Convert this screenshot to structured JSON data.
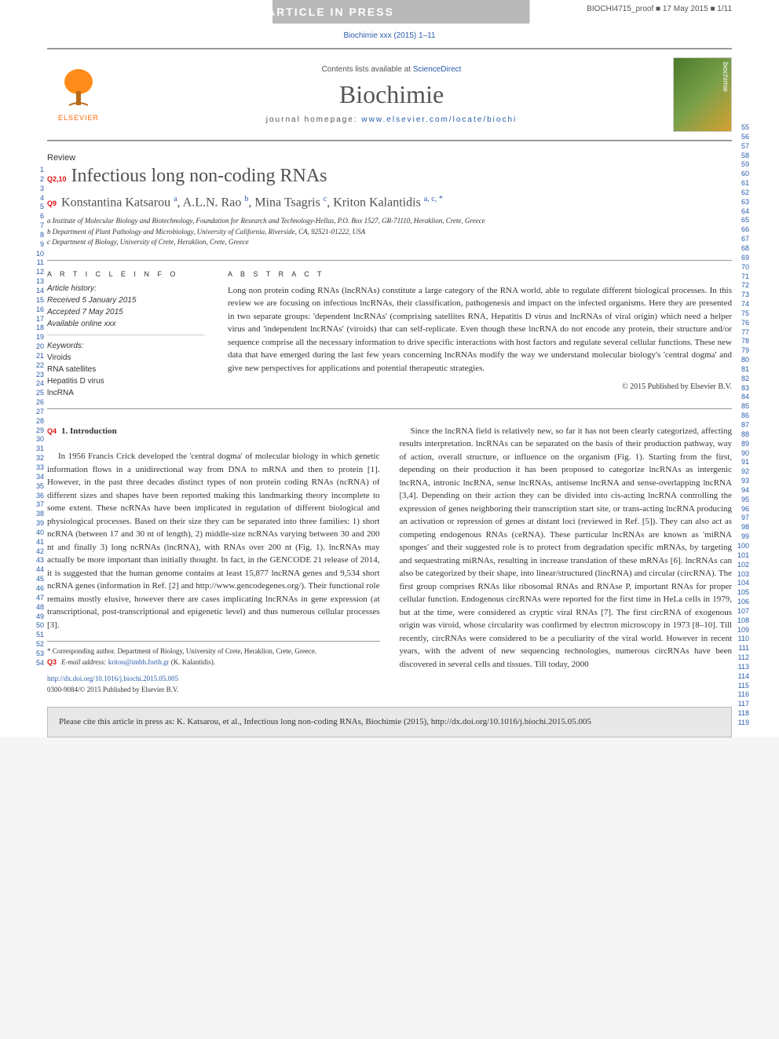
{
  "banner": {
    "text": "ARTICLE IN PRESS",
    "proof": "BIOCHI4715_proof ■ 17 May 2015 ■ 1/11"
  },
  "citation_top": "Biochimie xxx (2015) 1–11",
  "header": {
    "contents_prefix": "Contents lists available at ",
    "contents_link": "ScienceDirect",
    "journal": "Biochimie",
    "homepage_prefix": "journal homepage: ",
    "homepage_link": "www.elsevier.com/locate/biochi",
    "elsevier": "ELSEVIER",
    "cover_label": "biochimie"
  },
  "review_label": "Review",
  "q_markers": {
    "q210": "Q2,10",
    "q9": "Q9",
    "q4": "Q4",
    "q3": "Q3"
  },
  "title": "Infectious long non-coding RNAs",
  "authors_html": "Konstantina Katsarou",
  "authors": {
    "a1": "Konstantina Katsarou ",
    "a1sup": "a",
    "a2": ", A.L.N. Rao ",
    "a2sup": "b",
    "a3": ", Mina Tsagris ",
    "a3sup": "c",
    "a4": ", Kriton Kalantidis ",
    "a4sup": "a, c, ",
    "a4star": "*"
  },
  "affiliations": {
    "a": "a Institute of Molecular Biology and Biotechnology, Foundation for Research and Technology-Hellas, P.O. Box 1527, GR-71110, Heraklion, Crete, Greece",
    "b": "b Department of Plant Pathology and Microbiology, University of California, Riverside, CA, 92521-01222, USA",
    "c": "c Department of Biology, University of Crete, Heraklion, Crete, Greece"
  },
  "info": {
    "heading": "A R T I C L E   I N F O",
    "history_label": "Article history:",
    "received": "Received 5 January 2015",
    "accepted": "Accepted 7 May 2015",
    "available": "Available online xxx",
    "keywords_label": "Keywords:",
    "keywords": [
      "Viroids",
      "RNA satellites",
      "Hepatitis D virus",
      "lncRNA"
    ]
  },
  "abstract": {
    "heading": "A B S T R A C T",
    "text": "Long non protein coding RNAs (lncRNAs) constitute a large category of the RNA world, able to regulate different biological processes. In this review we are focusing on infectious lncRNAs, their classification, pathogenesis and impact on the infected organisms. Here they are presented in two separate groups: 'dependent lncRNAs' (comprising satellites RNA, Hepatitis D virus and lncRNAs of viral origin) which need a helper virus and 'independent lncRNAs' (viroids) that can self-replicate. Even though these lncRNA do not encode any protein, their structure and/or sequence comprise all the necessary information to drive specific interactions with host factors and regulate several cellular functions. These new data that have emerged during the last few years concerning lncRNAs modify the way we understand molecular biology's 'central dogma' and give new perspectives for applications and potential therapeutic strategies.",
    "copyright": "© 2015 Published by Elsevier B.V."
  },
  "body": {
    "intro_heading": "1. Introduction",
    "col1_p1": "In 1956 Francis Crick developed the 'central dogma' of molecular biology in which genetic information flows in a unidirectional way from DNA to mRNA and then to protein [1]. However, in the past three decades distinct types of non protein coding RNAs (ncRNA) of different sizes and shapes have been reported making this landmarking theory incomplete to some extent. These ncRNAs have been implicated in regulation of different biological and physiological processes. Based on their size they can be separated into three families: 1) short ncRNA (between 17 and 30 nt of length), 2) middle-size ncRNAs varying between 30 and 200 nt and finally 3) long ncRNAs (lncRNA), with RNAs over 200 nt (Fig. 1). lncRNAs may actually be more important than initially thought. In fact, in the GENCODE 21 release of 2014, it is suggested that the human genome contains at least 15,877 lncRNA genes and 9,534 short ncRNA genes (information in Ref. [2] and http://www.gencodegenes.org/). Their functional role remains mostly elusive, however there are cases implicating lncRNAs in gene expression (at transcriptional, post-transcriptional and epigenetic level) and thus numerous cellular processes [3].",
    "col2_p1": "Since the lncRNA field is relatively new, so far it has not been clearly categorized, affecting results interpretation. lncRNAs can be separated on the basis of their production pathway, way of action, overall structure, or influence on the organism (Fig. 1). Starting from the first, depending on their production it has been proposed to categorize lncRNAs as intergenic lncRNA, intronic lncRNA, sense lncRNAs, antisense lncRNA and sense-overlapping lncRNA [3,4]. Depending on their action they can be divided into cis-acting lncRNA controlling the expression of genes neighboring their transcription start site, or trans-acting lncRNA producing an activation or repression of genes at distant loci (reviewed in Ref. [5]). They can also act as competing endogenous RNAs (ceRNA). These particular lncRNAs are known as 'miRNA sponges' and their suggested role is to protect from degradation specific mRNAs, by targeting and sequestrating miRNAs, resulting in increase translation of these mRNAs [6]. lncRNAs can also be categorized by their shape, into linear/structured (lincRNA) and circular (circRNA). The first group comprises RNAs like ribosomal RNAs and RNAse P, important RNAs for proper cellular function. Endogenous circRNAs were reported for the first time in HeLa cells in 1979, but at the time, were considered as cryptic viral RNAs [7]. The first circRNA of exogenous origin was viroid, whose circularity was confirmed by electron microscopy in 1973 [8–10]. Till recently, circRNAs were considered to be a peculiarity of the viral world. However in recent years, with the advent of new sequencing technologies, numerous circRNAs have been discovered in several cells and tissues. Till today, 2000"
  },
  "footer": {
    "corresp": "* Corresponding author. Department of Biology, University of Crete, Heraklion, Crete, Greece.",
    "email_label": "E-mail address: ",
    "email": "kriton@imbb.forth.gr",
    "email_suffix": " (K. Kalantidis).",
    "doi_link": "http://dx.doi.org/10.1016/j.biochi.2015.05.005",
    "issn": "0300-9084/© 2015 Published by Elsevier B.V."
  },
  "cite_box": "Please cite this article in press as: K. Katsarou, et al., Infectious long non-coding RNAs, Biochimie (2015), http://dx.doi.org/10.1016/j.biochi.2015.05.005",
  "line_numbers": {
    "left_start": 1,
    "left_end": 54,
    "right_start": 55,
    "right_end": 119
  },
  "colors": {
    "link": "#2a5caa",
    "q_marker": "#e01010",
    "banner_gray": "#b8b8b8",
    "elsevier_orange": "#ff6600"
  }
}
